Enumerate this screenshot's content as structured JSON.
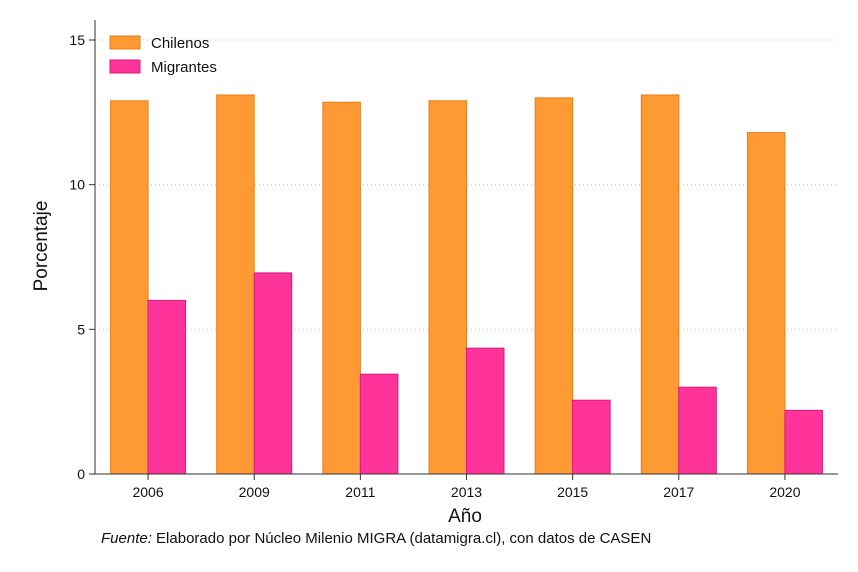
{
  "chart_data": {
    "type": "bar",
    "categories": [
      "2006",
      "2009",
      "2011",
      "2013",
      "2015",
      "2017",
      "2020"
    ],
    "series": [
      {
        "name": "Chilenos",
        "color": "#FF9933",
        "values": [
          12.9,
          13.1,
          12.85,
          12.9,
          13.0,
          13.1,
          11.8
        ]
      },
      {
        "name": "Migrantes",
        "color": "#FF3399",
        "values": [
          6.0,
          6.95,
          3.45,
          4.35,
          2.55,
          3.0,
          2.2
        ]
      }
    ],
    "xlabel": "Año",
    "ylabel": "Porcentaje",
    "ylim": [
      0,
      15
    ],
    "yticks": [
      0,
      5,
      10,
      15
    ],
    "grid": true,
    "legend_position": "top-left"
  },
  "note": {
    "lead": "Fuente:",
    "text": "Elaborado por Núcleo Milenio MIGRA (datamigra.cl), con datos de CASEN"
  }
}
